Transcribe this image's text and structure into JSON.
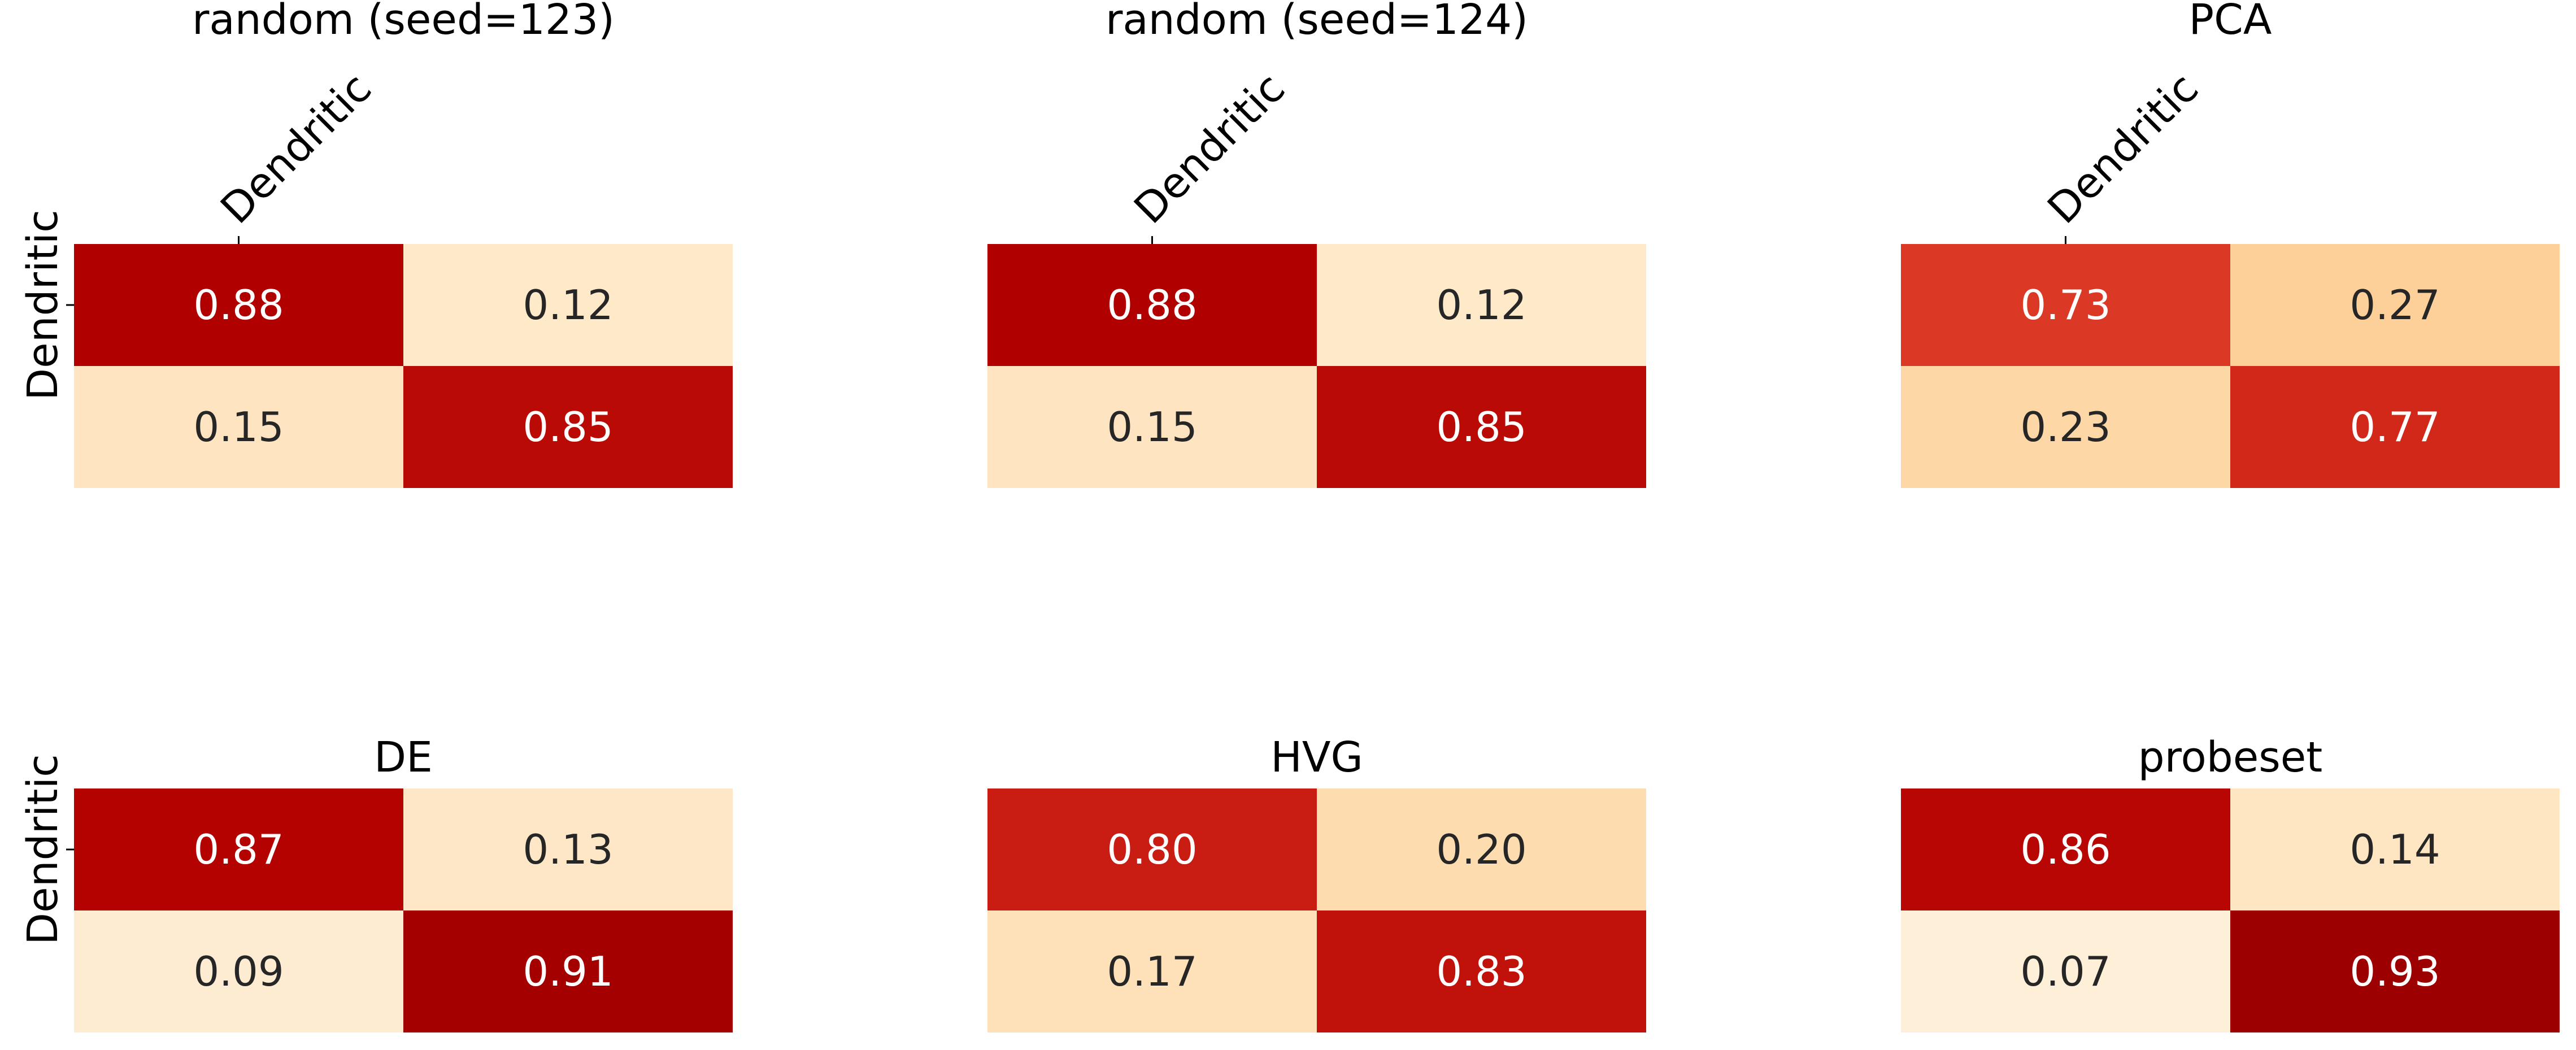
{
  "chart_data": [
    {
      "type": "heatmap",
      "title": "random (seed=123)",
      "row_labels": [
        "Dendritic"
      ],
      "col_labels": [
        "Dendritic"
      ],
      "values": [
        [
          0.88,
          0.12
        ],
        [
          0.15,
          0.85
        ]
      ],
      "value_labels": [
        [
          "0.88",
          "0.12"
        ],
        [
          "0.15",
          "0.85"
        ]
      ]
    },
    {
      "type": "heatmap",
      "title": "random (seed=124)",
      "row_labels": [],
      "col_labels": [
        "Dendritic"
      ],
      "values": [
        [
          0.88,
          0.12
        ],
        [
          0.15,
          0.85
        ]
      ],
      "value_labels": [
        [
          "0.88",
          "0.12"
        ],
        [
          "0.15",
          "0.85"
        ]
      ]
    },
    {
      "type": "heatmap",
      "title": "PCA",
      "row_labels": [],
      "col_labels": [
        "Dendritic"
      ],
      "values": [
        [
          0.73,
          0.27
        ],
        [
          0.23,
          0.77
        ]
      ],
      "value_labels": [
        [
          "0.73",
          "0.27"
        ],
        [
          "0.23",
          "0.77"
        ]
      ]
    },
    {
      "type": "heatmap",
      "title": "DE",
      "row_labels": [
        "Dendritic"
      ],
      "col_labels": [],
      "values": [
        [
          0.87,
          0.13
        ],
        [
          0.09,
          0.91
        ]
      ],
      "value_labels": [
        [
          "0.87",
          "0.13"
        ],
        [
          "0.09",
          "0.91"
        ]
      ]
    },
    {
      "type": "heatmap",
      "title": "HVG",
      "row_labels": [],
      "col_labels": [],
      "values": [
        [
          0.8,
          0.2
        ],
        [
          0.17,
          0.83
        ]
      ],
      "value_labels": [
        [
          "0.80",
          "0.20"
        ],
        [
          "0.17",
          "0.83"
        ]
      ]
    },
    {
      "type": "heatmap",
      "title": "probeset",
      "row_labels": [],
      "col_labels": [],
      "values": [
        [
          0.86,
          0.14
        ],
        [
          0.07,
          0.93
        ]
      ],
      "value_labels": [
        [
          "0.86",
          "0.14"
        ],
        [
          "0.07",
          "0.93"
        ]
      ]
    }
  ],
  "colormap": {
    "name": "OrRd",
    "stops": [
      "#fff7ec",
      "#fee8c8",
      "#fdd49e",
      "#fdbb84",
      "#fc8d59",
      "#ef6548",
      "#d7301f",
      "#b30000",
      "#7f0000"
    ],
    "range": [
      0,
      1
    ]
  }
}
